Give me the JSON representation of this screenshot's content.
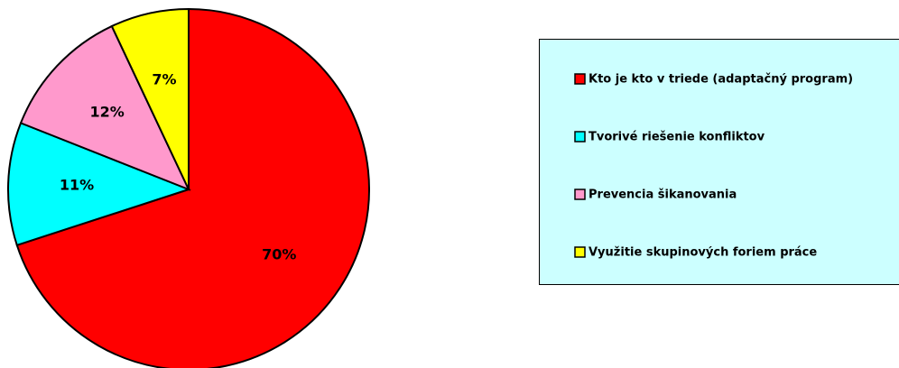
{
  "chart_data": {
    "type": "pie",
    "categories": [
      "Kto je kto v triede (adaptačný program)",
      "Tvorivé riešenie konfliktov",
      "Prevencia šikanovania",
      "Využitie skupinových foriem práce"
    ],
    "values": [
      70,
      11,
      12,
      7
    ],
    "value_labels": [
      "70%",
      "11%",
      "12%",
      "7%"
    ],
    "colors": [
      "#ff0000",
      "#00ffff",
      "#ff99cc",
      "#ffff00"
    ],
    "legend": "right"
  }
}
